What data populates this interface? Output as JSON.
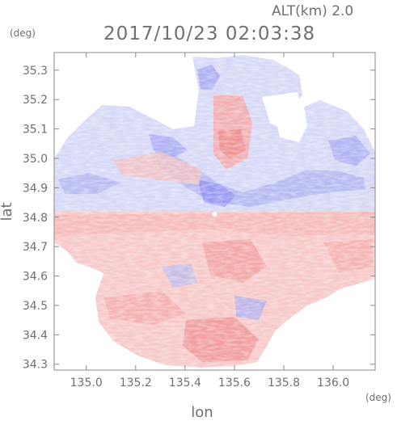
{
  "header": {
    "altitude_label": "ALT(km) 2.0",
    "timestamp": "2017/10/23 02:03:38",
    "lat_unit": "(deg)",
    "lon_unit": "(deg)"
  },
  "axes": {
    "xlabel": "lon",
    "ylabel": "lat",
    "xlim": [
      134.87,
      136.17
    ],
    "ylim": [
      34.28,
      35.36
    ],
    "xticks": [
      "135.0",
      "135.2",
      "135.4",
      "135.6",
      "135.8",
      "136.0"
    ],
    "yticks": [
      "34.3",
      "34.4",
      "34.5",
      "34.6",
      "34.7",
      "34.8",
      "34.9",
      "35.0",
      "35.1",
      "35.2",
      "35.3"
    ]
  },
  "map": {
    "radar_center": {
      "lon": 135.52,
      "lat": 34.81
    },
    "colors": {
      "positive": "#f08080",
      "negative": "#8c8cf0",
      "neutral": "#ffffff",
      "frame": "#8a8a8a"
    }
  }
}
